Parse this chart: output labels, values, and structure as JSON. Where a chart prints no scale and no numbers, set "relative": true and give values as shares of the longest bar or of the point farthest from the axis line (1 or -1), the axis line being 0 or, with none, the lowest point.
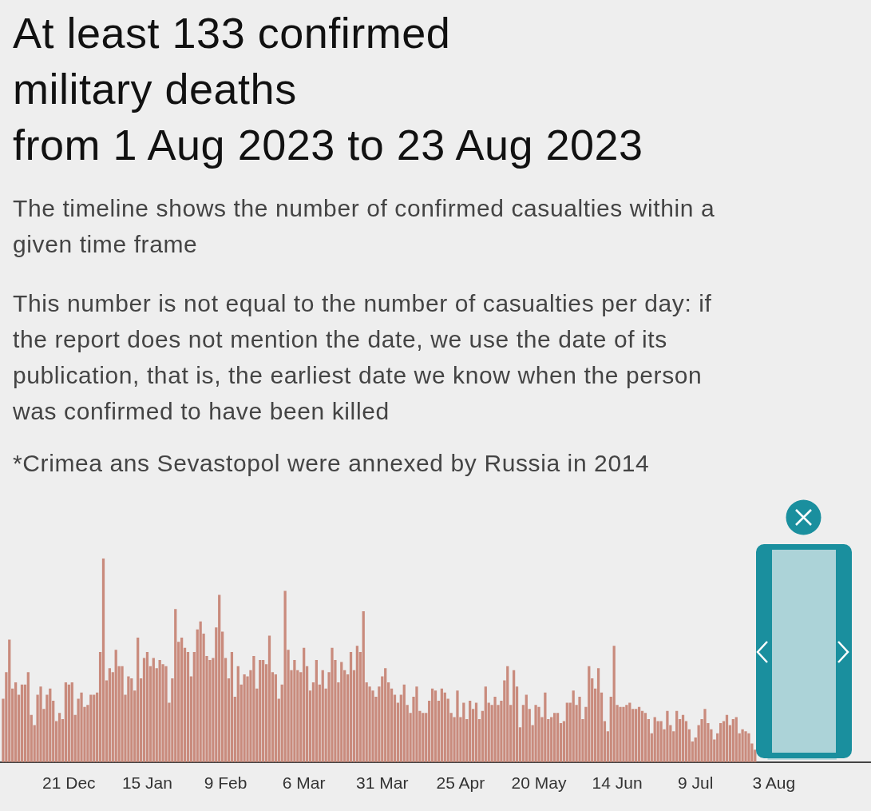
{
  "chart_data": {
    "type": "bar",
    "title": "At least 133 confirmed\nmilitary deaths\nfrom 1 Aug 2023 to 23 Aug 2023",
    "subtitle": "The timeline shows the number of confirmed casualties within a given time frame",
    "annotations": [
      "This number is not equal to the number of casualties per day: if the report does not mention the date, we use the date of its publication, that is, the earliest date we know when the person was confirmed to have been killed",
      "*Crimea ans Sevastopol were annexed by Russia in 2014"
    ],
    "relative": true,
    "xlim": [
      "2022-11-29",
      "2023-09-03"
    ],
    "xticks": [
      {
        "value": "2022-12-21",
        "label": "21 Dec"
      },
      {
        "value": "2023-01-15",
        "label": "15 Jan"
      },
      {
        "value": "2023-02-09",
        "label": "9 Feb"
      },
      {
        "value": "2023-03-06",
        "label": "6 Mar"
      },
      {
        "value": "2023-03-31",
        "label": "31 Mar"
      },
      {
        "value": "2023-04-25",
        "label": "25 Apr"
      },
      {
        "value": "2023-05-20",
        "label": "20 May"
      },
      {
        "value": "2023-06-14",
        "label": "14 Jun"
      },
      {
        "value": "2023-07-09",
        "label": "9 Jul"
      },
      {
        "value": "2023-08-03",
        "label": "3 Aug"
      }
    ],
    "tick_labels": "x",
    "bands": [
      {
        "axis": "x",
        "from": "2023-08-01",
        "to": "2023-08-23",
        "color": "#acd3d8"
      }
    ],
    "x": [
      "2022-11-30",
      "2022-12-01",
      "2022-12-02",
      "2022-12-03",
      "2022-12-04",
      "2022-12-05",
      "2022-12-06",
      "2022-12-07",
      "2022-12-08",
      "2022-12-09",
      "2022-12-10",
      "2022-12-11",
      "2022-12-12",
      "2022-12-13",
      "2022-12-14",
      "2022-12-15",
      "2022-12-16",
      "2022-12-17",
      "2022-12-18",
      "2022-12-19",
      "2022-12-20",
      "2022-12-21",
      "2022-12-22",
      "2022-12-23",
      "2022-12-24",
      "2022-12-25",
      "2022-12-26",
      "2022-12-27",
      "2022-12-28",
      "2022-12-29",
      "2022-12-30",
      "2022-12-31",
      "2023-01-01",
      "2023-01-02",
      "2023-01-03",
      "2023-01-04",
      "2023-01-05",
      "2023-01-06",
      "2023-01-07",
      "2023-01-08",
      "2023-01-09",
      "2023-01-10",
      "2023-01-11",
      "2023-01-12",
      "2023-01-13",
      "2023-01-14",
      "2023-01-15",
      "2023-01-16",
      "2023-01-17",
      "2023-01-18",
      "2023-01-19",
      "2023-01-20",
      "2023-01-21",
      "2023-01-22",
      "2023-01-23",
      "2023-01-24",
      "2023-01-25",
      "2023-01-26",
      "2023-01-27",
      "2023-01-28",
      "2023-01-29",
      "2023-01-30",
      "2023-01-31",
      "2023-02-01",
      "2023-02-02",
      "2023-02-03",
      "2023-02-04",
      "2023-02-05",
      "2023-02-06",
      "2023-02-07",
      "2023-02-08",
      "2023-02-09",
      "2023-02-10",
      "2023-02-11",
      "2023-02-12",
      "2023-02-13",
      "2023-02-14",
      "2023-02-15",
      "2023-02-16",
      "2023-02-17",
      "2023-02-18",
      "2023-02-19",
      "2023-02-20",
      "2023-02-21",
      "2023-02-22",
      "2023-02-23",
      "2023-02-24",
      "2023-02-25",
      "2023-02-26",
      "2023-02-27",
      "2023-02-28",
      "2023-03-01",
      "2023-03-02",
      "2023-03-03",
      "2023-03-04",
      "2023-03-05",
      "2023-03-06",
      "2023-03-07",
      "2023-03-08",
      "2023-03-09",
      "2023-03-10",
      "2023-03-11",
      "2023-03-12",
      "2023-03-13",
      "2023-03-14",
      "2023-03-15",
      "2023-03-16",
      "2023-03-17",
      "2023-03-18",
      "2023-03-19",
      "2023-03-20",
      "2023-03-21",
      "2023-03-22",
      "2023-03-23",
      "2023-03-24",
      "2023-03-25",
      "2023-03-26",
      "2023-03-27",
      "2023-03-28",
      "2023-03-29",
      "2023-03-30",
      "2023-03-31",
      "2023-04-01",
      "2023-04-02",
      "2023-04-03",
      "2023-04-04",
      "2023-04-05",
      "2023-04-06",
      "2023-04-07",
      "2023-04-08",
      "2023-04-09",
      "2023-04-10",
      "2023-04-11",
      "2023-04-12",
      "2023-04-13",
      "2023-04-14",
      "2023-04-15",
      "2023-04-16",
      "2023-04-17",
      "2023-04-18",
      "2023-04-19",
      "2023-04-20",
      "2023-04-21",
      "2023-04-22",
      "2023-04-23",
      "2023-04-24",
      "2023-04-25",
      "2023-04-26",
      "2023-04-27",
      "2023-04-28",
      "2023-04-29",
      "2023-04-30",
      "2023-05-01",
      "2023-05-02",
      "2023-05-03",
      "2023-05-04",
      "2023-05-05",
      "2023-05-06",
      "2023-05-07",
      "2023-05-08",
      "2023-05-09",
      "2023-05-10",
      "2023-05-11",
      "2023-05-12",
      "2023-05-13",
      "2023-05-14",
      "2023-05-15",
      "2023-05-16",
      "2023-05-17",
      "2023-05-18",
      "2023-05-19",
      "2023-05-20",
      "2023-05-21",
      "2023-05-22",
      "2023-05-23",
      "2023-05-24",
      "2023-05-25",
      "2023-05-26",
      "2023-05-27",
      "2023-05-28",
      "2023-05-29",
      "2023-05-30",
      "2023-05-31",
      "2023-06-01",
      "2023-06-02",
      "2023-06-03",
      "2023-06-04",
      "2023-06-05",
      "2023-06-06",
      "2023-06-07",
      "2023-06-08",
      "2023-06-09",
      "2023-06-10",
      "2023-06-11",
      "2023-06-12",
      "2023-06-13",
      "2023-06-14",
      "2023-06-15",
      "2023-06-16",
      "2023-06-17",
      "2023-06-18",
      "2023-06-19",
      "2023-06-20",
      "2023-06-21",
      "2023-06-22",
      "2023-06-23",
      "2023-06-24",
      "2023-06-25",
      "2023-06-26",
      "2023-06-27",
      "2023-06-28",
      "2023-06-29",
      "2023-06-30",
      "2023-07-01",
      "2023-07-02",
      "2023-07-03",
      "2023-07-04",
      "2023-07-05",
      "2023-07-06",
      "2023-07-07",
      "2023-07-08",
      "2023-07-09",
      "2023-07-10",
      "2023-07-11",
      "2023-07-12",
      "2023-07-13",
      "2023-07-14",
      "2023-07-15",
      "2023-07-16",
      "2023-07-17",
      "2023-07-18",
      "2023-07-19",
      "2023-07-20",
      "2023-07-21",
      "2023-07-22",
      "2023-07-23",
      "2023-07-24",
      "2023-07-25",
      "2023-07-26",
      "2023-07-27",
      "2023-07-28"
    ],
    "series": [
      {
        "color": "#c98b7d",
        "values": [
          0.31,
          0.44,
          0.6,
          0.36,
          0.39,
          0.33,
          0.38,
          0.38,
          0.44,
          0.23,
          0.18,
          0.33,
          0.37,
          0.26,
          0.33,
          0.36,
          0.3,
          0.2,
          0.24,
          0.21,
          0.39,
          0.38,
          0.39,
          0.23,
          0.31,
          0.34,
          0.27,
          0.28,
          0.33,
          0.33,
          0.34,
          0.54,
          1,
          0.4,
          0.46,
          0.44,
          0.55,
          0.47,
          0.47,
          0.33,
          0.42,
          0.41,
          0.35,
          0.61,
          0.41,
          0.51,
          0.54,
          0.47,
          0.51,
          0.46,
          0.5,
          0.48,
          0.47,
          0.29,
          0.41,
          0.75,
          0.59,
          0.61,
          0.56,
          0.54,
          0.42,
          0.54,
          0.65,
          0.69,
          0.63,
          0.52,
          0.5,
          0.51,
          0.66,
          0.82,
          0.64,
          0.51,
          0.41,
          0.54,
          0.32,
          0.47,
          0.38,
          0.43,
          0.42,
          0.45,
          0.52,
          0.36,
          0.5,
          0.5,
          0.48,
          0.62,
          0.44,
          0.43,
          0.31,
          0.38,
          0.84,
          0.55,
          0.45,
          0.5,
          0.45,
          0.44,
          0.56,
          0.47,
          0.35,
          0.39,
          0.5,
          0.38,
          0.45,
          0.36,
          0.44,
          0.56,
          0.5,
          0.39,
          0.49,
          0.45,
          0.43,
          0.54,
          0.45,
          0.57,
          0.54,
          0.74,
          0.39,
          0.37,
          0.35,
          0.32,
          0.37,
          0.42,
          0.46,
          0.39,
          0.36,
          0.33,
          0.29,
          0.33,
          0.38,
          0.28,
          0.24,
          0.32,
          0.37,
          0.25,
          0.24,
          0.24,
          0.3,
          0.36,
          0.35,
          0.3,
          0.36,
          0.34,
          0.31,
          0.24,
          0.22,
          0.35,
          0.22,
          0.29,
          0.21,
          0.3,
          0.26,
          0.29,
          0.21,
          0.25,
          0.37,
          0.29,
          0.28,
          0.32,
          0.28,
          0.3,
          0.4,
          0.47,
          0.28,
          0.45,
          0.37,
          0.17,
          0.28,
          0.33,
          0.26,
          0.18,
          0.28,
          0.27,
          0.22,
          0.34,
          0.21,
          0.22,
          0.24,
          0.24,
          0.19,
          0.2,
          0.29,
          0.29,
          0.35,
          0.28,
          0.32,
          0.21,
          0.27,
          0.47,
          0.41,
          0.36,
          0.46,
          0.34,
          0.2,
          0.15,
          0.32,
          0.57,
          0.28,
          0.27,
          0.27,
          0.28,
          0.29,
          0.26,
          0.26,
          0.27,
          0.25,
          0.24,
          0.21,
          0.14,
          0.22,
          0.2,
          0.2,
          0.16,
          0.25,
          0.18,
          0.15,
          0.25,
          0.21,
          0.23,
          0.2,
          0.16,
          0.1,
          0.12,
          0.18,
          0.21,
          0.26,
          0.19,
          0.16,
          0.11,
          0.14,
          0.19,
          0.2,
          0.23,
          0.18,
          0.21,
          0.22,
          0.14,
          0.16,
          0.15,
          0.14,
          0.09,
          0.06
        ]
      }
    ]
  }
}
